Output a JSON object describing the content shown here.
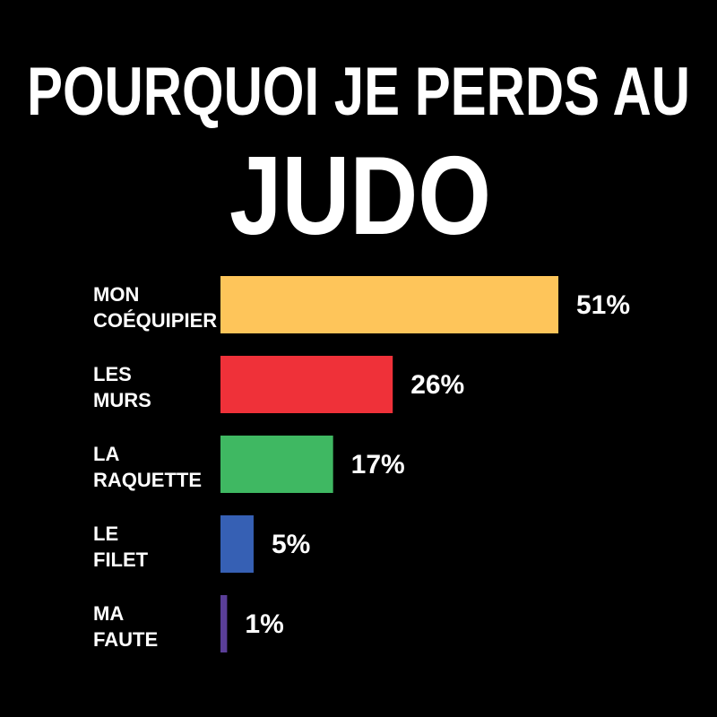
{
  "chart_data": {
    "type": "bar",
    "orientation": "horizontal",
    "title": [
      "POURQUOI JE PERDS AU",
      "JUDO"
    ],
    "categories": [
      [
        "MON",
        "COÉQUIPIER"
      ],
      [
        "LES",
        "MURS"
      ],
      [
        "LA",
        "RAQUETTE"
      ],
      [
        "LE",
        "FILET"
      ],
      [
        "MA",
        "FAUTE"
      ]
    ],
    "values": [
      51,
      26,
      17,
      5,
      1
    ],
    "value_labels": [
      "51%",
      "26%",
      "17%",
      "5%",
      "1%"
    ],
    "colors": [
      "#fec55a",
      "#ef3139",
      "#3fb862",
      "#3660b4",
      "#5a3e98"
    ]
  }
}
